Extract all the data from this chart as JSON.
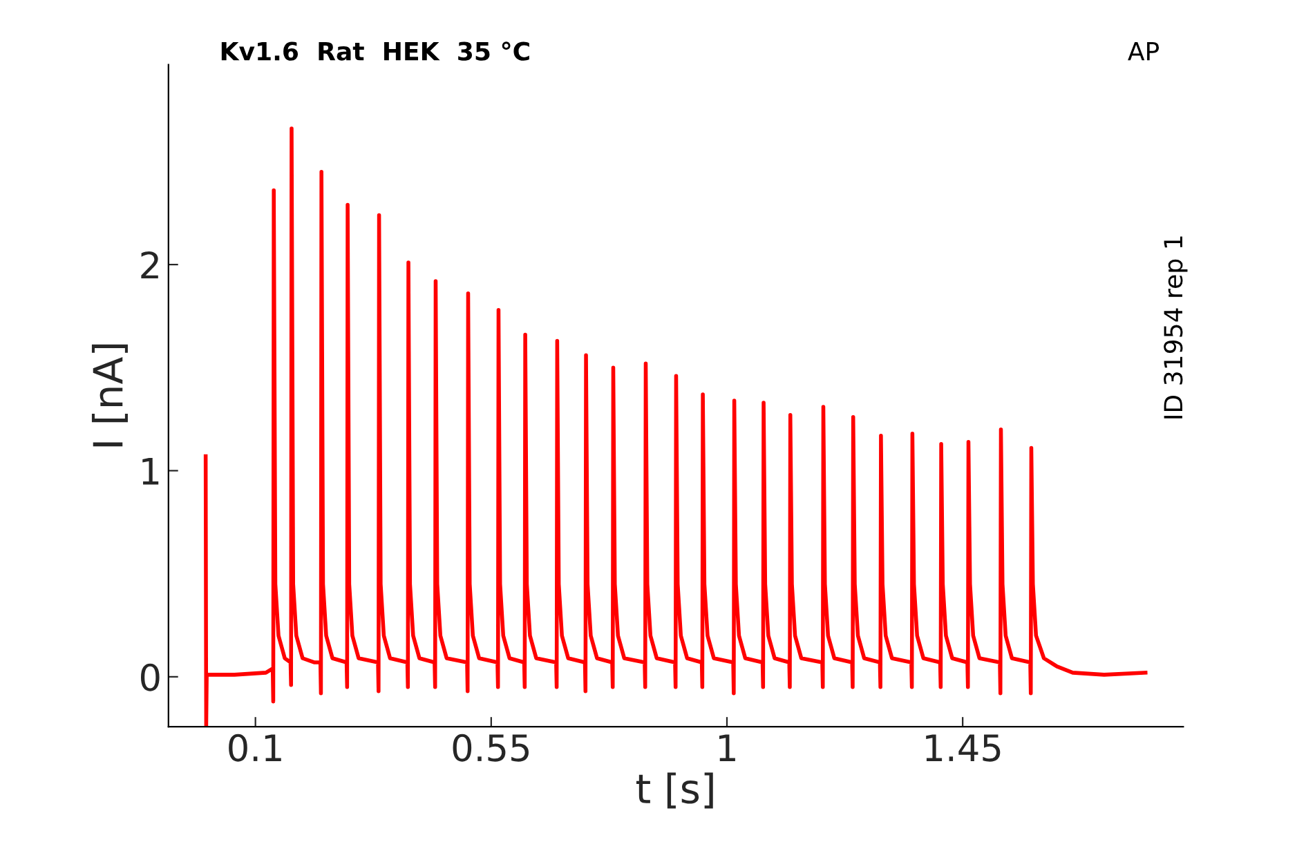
{
  "chart_data": {
    "type": "line",
    "title": "Kv1.6  Rat  HEK  35 °C",
    "xlabel": "t [s]",
    "ylabel": "I [nA]",
    "annotations": [
      "AP",
      "ID 31954 rep 1"
    ],
    "xlim": [
      -0.066,
      1.871
    ],
    "ylim": [
      -0.242,
      2.97
    ],
    "xticks": [
      0.1,
      0.55,
      1,
      1.45
    ],
    "yticks": [
      0,
      1,
      2
    ],
    "grid": false,
    "legend": false,
    "line_style": "solid",
    "marker": "none",
    "series": [
      {
        "color": "#ff0000",
        "x": [
          0.005,
          0.006,
          0.007,
          0.06,
          0.12,
          0.133,
          0.134,
          0.135,
          0.138,
          0.144,
          0.156,
          0.167,
          0.168,
          0.169,
          0.172,
          0.178,
          0.19,
          0.212,
          0.224,
          0.225,
          0.226,
          0.229,
          0.235,
          0.247,
          0.274,
          0.275,
          0.276,
          0.279,
          0.285,
          0.297,
          0.334,
          0.335,
          0.336,
          0.339,
          0.345,
          0.357,
          0.39,
          0.391,
          0.392,
          0.395,
          0.401,
          0.413,
          0.442,
          0.443,
          0.444,
          0.447,
          0.453,
          0.465,
          0.504,
          0.505,
          0.506,
          0.509,
          0.515,
          0.527,
          0.562,
          0.563,
          0.564,
          0.567,
          0.573,
          0.585,
          0.613,
          0.614,
          0.615,
          0.618,
          0.624,
          0.636,
          0.674,
          0.675,
          0.676,
          0.679,
          0.685,
          0.697,
          0.729,
          0.73,
          0.731,
          0.734,
          0.74,
          0.752,
          0.781,
          0.782,
          0.783,
          0.786,
          0.792,
          0.804,
          0.843,
          0.844,
          0.845,
          0.848,
          0.854,
          0.866,
          0.901,
          0.902,
          0.903,
          0.906,
          0.912,
          0.924,
          0.952,
          0.953,
          0.954,
          0.957,
          0.963,
          0.975,
          1.012,
          1.013,
          1.014,
          1.017,
          1.023,
          1.035,
          1.068,
          1.069,
          1.07,
          1.073,
          1.079,
          1.091,
          1.119,
          1.12,
          1.121,
          1.124,
          1.13,
          1.142,
          1.182,
          1.183,
          1.184,
          1.187,
          1.193,
          1.205,
          1.239,
          1.24,
          1.241,
          1.244,
          1.25,
          1.262,
          1.292,
          1.293,
          1.294,
          1.297,
          1.303,
          1.315,
          1.352,
          1.353,
          1.354,
          1.357,
          1.363,
          1.375,
          1.407,
          1.408,
          1.409,
          1.412,
          1.418,
          1.43,
          1.459,
          1.46,
          1.461,
          1.464,
          1.47,
          1.482,
          1.521,
          1.522,
          1.523,
          1.526,
          1.532,
          1.544,
          1.579,
          1.58,
          1.581,
          1.584,
          1.59,
          1.605,
          1.63,
          1.66,
          1.72,
          1.799
        ],
        "values": [
          1.07,
          -0.242,
          0.01,
          0.01,
          0.02,
          0.04,
          -0.12,
          2.36,
          0.45,
          0.2,
          0.09,
          0.07,
          -0.04,
          2.66,
          0.45,
          0.2,
          0.09,
          0.07,
          0.07,
          -0.08,
          2.45,
          0.45,
          0.2,
          0.09,
          0.07,
          -0.05,
          2.29,
          0.45,
          0.2,
          0.09,
          0.07,
          -0.07,
          2.24,
          0.45,
          0.2,
          0.09,
          0.07,
          -0.05,
          2.01,
          0.45,
          0.2,
          0.09,
          0.07,
          -0.05,
          1.92,
          0.45,
          0.2,
          0.09,
          0.07,
          -0.07,
          1.86,
          0.45,
          0.2,
          0.09,
          0.07,
          -0.05,
          1.78,
          0.45,
          0.2,
          0.09,
          0.07,
          -0.05,
          1.66,
          0.45,
          0.2,
          0.09,
          0.07,
          -0.05,
          1.63,
          0.45,
          0.2,
          0.09,
          0.07,
          -0.07,
          1.56,
          0.45,
          0.2,
          0.09,
          0.07,
          -0.05,
          1.5,
          0.45,
          0.2,
          0.09,
          0.07,
          -0.05,
          1.52,
          0.45,
          0.2,
          0.09,
          0.07,
          -0.05,
          1.46,
          0.45,
          0.2,
          0.09,
          0.07,
          -0.05,
          1.37,
          0.45,
          0.2,
          0.09,
          0.07,
          -0.08,
          1.34,
          0.45,
          0.2,
          0.09,
          0.07,
          -0.05,
          1.33,
          0.45,
          0.2,
          0.09,
          0.07,
          -0.05,
          1.27,
          0.45,
          0.2,
          0.09,
          0.07,
          -0.05,
          1.31,
          0.45,
          0.2,
          0.09,
          0.07,
          -0.05,
          1.26,
          0.45,
          0.2,
          0.09,
          0.07,
          -0.05,
          1.17,
          0.45,
          0.2,
          0.09,
          0.07,
          -0.05,
          1.18,
          0.45,
          0.2,
          0.09,
          0.07,
          -0.05,
          1.13,
          0.45,
          0.2,
          0.09,
          0.07,
          -0.05,
          1.14,
          0.45,
          0.2,
          0.09,
          0.07,
          -0.08,
          1.2,
          0.45,
          0.2,
          0.09,
          0.07,
          -0.08,
          1.11,
          0.45,
          0.2,
          0.09,
          0.05,
          0.02,
          0.01,
          0.02
        ]
      }
    ]
  }
}
